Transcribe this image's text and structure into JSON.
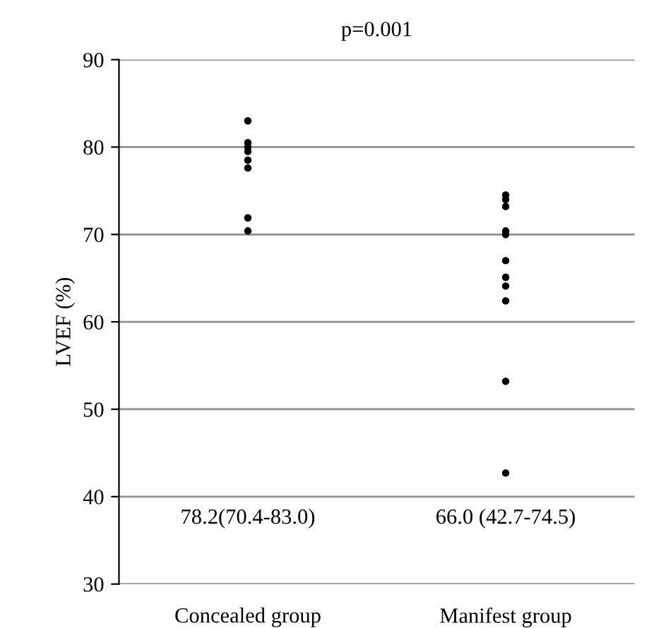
{
  "chart_data": {
    "type": "scatter",
    "title": "p=0.001",
    "ylabel": "LVEF (%)",
    "categories": [
      "Concealed group",
      "Manifest group"
    ],
    "series": [
      {
        "color": "#000000",
        "x": [
          "Concealed group",
          "Concealed group",
          "Concealed group",
          "Concealed group",
          "Concealed group",
          "Concealed group",
          "Concealed group",
          "Concealed group"
        ],
        "values": [
          83.0,
          80.5,
          80.0,
          79.5,
          78.5,
          77.6,
          71.9,
          70.4
        ]
      },
      {
        "color": "#000000",
        "x": [
          "Manifest group",
          "Manifest group",
          "Manifest group",
          "Manifest group",
          "Manifest group",
          "Manifest group",
          "Manifest group",
          "Manifest group",
          "Manifest group",
          "Manifest group",
          "Manifest group"
        ],
        "values": [
          74.5,
          74.0,
          73.2,
          70.4,
          70.0,
          67.0,
          65.1,
          64.1,
          62.4,
          53.2,
          42.7
        ]
      }
    ],
    "annotations": [
      "78.2(70.4-83.0)",
      "66.0 (42.7-74.5)"
    ],
    "ylim": [
      30,
      90
    ],
    "yticks": [
      30,
      40,
      50,
      60,
      70,
      80,
      90
    ],
    "grid": "y",
    "marker": "circle"
  }
}
